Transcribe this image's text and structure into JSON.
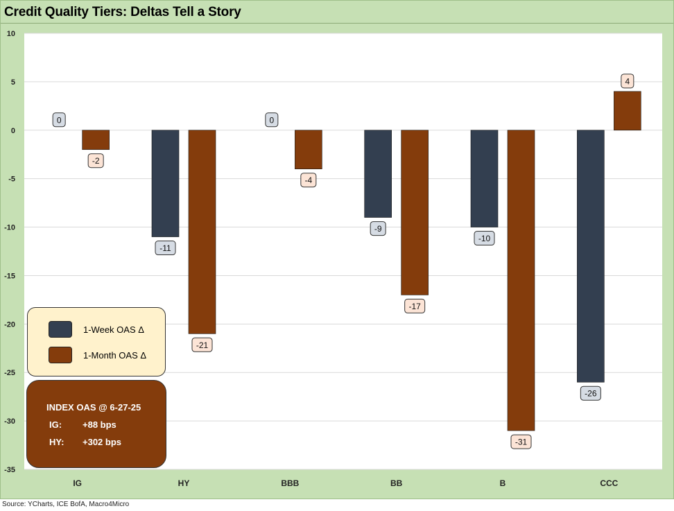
{
  "title": "Credit Quality Tiers: Deltas Tell a Story",
  "source": "Source: YCharts, ICE BofA, Macro4Micro",
  "colors": {
    "week": "#333f50",
    "month": "#843c0c",
    "week_label_bg": "#d6dce4",
    "month_label_bg": "#fce4d6",
    "frame": "#c6e0b4",
    "legend_bg": "#fff2cc"
  },
  "chart_data": {
    "type": "bar",
    "title": "Credit Quality Tiers: Deltas Tell a Story",
    "categories": [
      "IG",
      "HY",
      "BBB",
      "BB",
      "B",
      "CCC"
    ],
    "series": [
      {
        "name": "1-Week OAS Δ",
        "values": [
          0,
          -11,
          0,
          -9,
          -10,
          -26
        ]
      },
      {
        "name": "1-Month OAS Δ",
        "values": [
          -2,
          -21,
          -4,
          -17,
          -31,
          4
        ]
      }
    ],
    "ylim": [
      -35,
      10
    ],
    "yticks": [
      10,
      5,
      0,
      -5,
      -10,
      -15,
      -20,
      -25,
      -30,
      -35
    ],
    "xlabel": "",
    "ylabel": "",
    "grid": true,
    "legend": "bottom-left"
  },
  "legend": {
    "week_label": "1-Week OAS Δ",
    "month_label": "1-Month OAS Δ"
  },
  "index_box": {
    "title": "INDEX OAS @ 6-27-25",
    "ig_label": "IG:",
    "ig_value": "+88 bps",
    "hy_label": "HY:",
    "hy_value": "+302 bps"
  }
}
